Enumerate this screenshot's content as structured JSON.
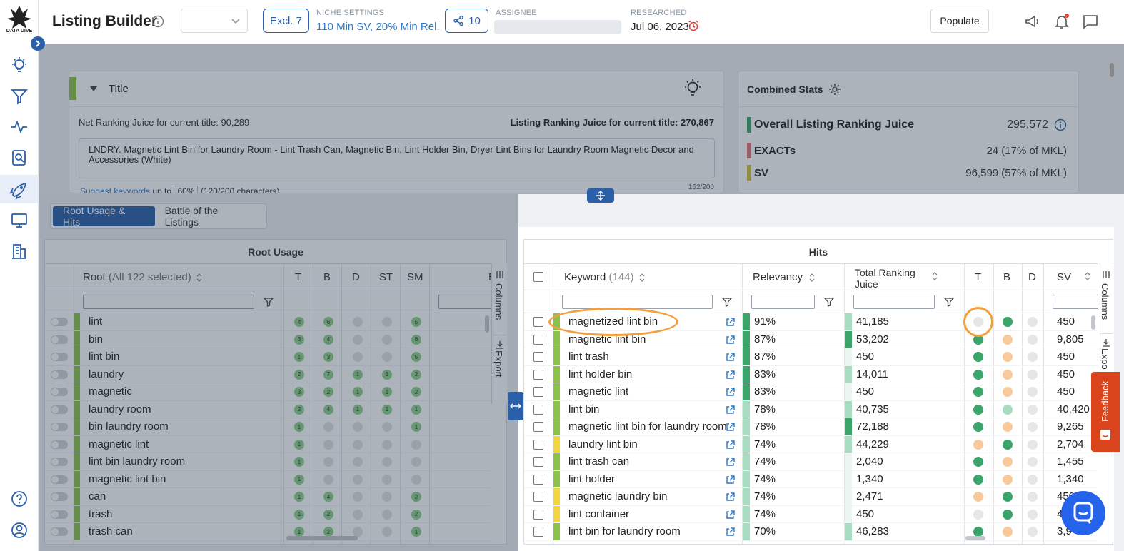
{
  "app": {
    "logo_text": "DATA DIVE",
    "page_title": "Listing Builder"
  },
  "header": {
    "excl_label": "Excl. 7",
    "niche_label": "NICHE SETTINGS",
    "niche_value": "110 Min SV, 20% Min Rel.",
    "share_count": "10",
    "assignee_label": "ASSIGNEE",
    "researched_label": "RESEARCHED",
    "researched_value": "Jul 06, 2023",
    "populate_label": "Populate"
  },
  "title_card": {
    "heading": "Title",
    "net_label": "Net Ranking Juice for current title:",
    "net_value": "90,289",
    "listing_label": "Listing Ranking Juice for current title:",
    "listing_value": "270,867",
    "text": "LNDRY. Magnetic Lint Bin for Laundry Room - Lint Trash Can, Magnetic Bin, Lint Holder Bin, Dryer Lint Bins for Laundry Room Magnetic Decor and Accessories (White)",
    "suggest_label": "Suggest keywords",
    "upto_label": "up to",
    "upto_value": "60%",
    "chars_label": "(120/200 characters)",
    "counter": "162/200"
  },
  "stats": {
    "title": "Combined Stats",
    "overall_label": "Overall Listing Ranking Juice",
    "overall_value": "295,572",
    "rows": [
      {
        "label": "EXACTs",
        "value": "24 (17% of MKL)",
        "color": "#e57373"
      },
      {
        "label": "SV",
        "value": "96,599 (57% of MKL)",
        "color": "#d4c43a"
      }
    ]
  },
  "tabs": [
    "Root Usage & Hits",
    "Battle of the Listings"
  ],
  "root_usage": {
    "title": "Root Usage",
    "root_header": "Root",
    "root_count": "(All 122 selected)",
    "cols": [
      "T",
      "B",
      "D",
      "ST",
      "SM",
      "B"
    ],
    "side_labels": [
      "Columns",
      "Export"
    ],
    "rows": [
      {
        "name": "lint",
        "t": "4",
        "b": "6",
        "d": "",
        "st": "",
        "sm": "5"
      },
      {
        "name": "bin",
        "t": "3",
        "b": "4",
        "d": "",
        "st": "",
        "sm": "8"
      },
      {
        "name": "lint bin",
        "t": "1",
        "b": "3",
        "d": "",
        "st": "",
        "sm": "5"
      },
      {
        "name": "laundry",
        "t": "2",
        "b": "7",
        "d": "1",
        "st": "1",
        "sm": "2"
      },
      {
        "name": "magnetic",
        "t": "3",
        "b": "2",
        "d": "1",
        "st": "1",
        "sm": "2"
      },
      {
        "name": "laundry room",
        "t": "2",
        "b": "4",
        "d": "1",
        "st": "1",
        "sm": "1"
      },
      {
        "name": "bin laundry room",
        "t": "1",
        "b": "",
        "d": "",
        "st": "",
        "sm": "1"
      },
      {
        "name": "magnetic lint",
        "t": "1",
        "b": "",
        "d": "",
        "st": "",
        "sm": ""
      },
      {
        "name": "lint bin laundry room",
        "t": "1",
        "b": "",
        "d": "",
        "st": "",
        "sm": ""
      },
      {
        "name": "magnetic lint bin",
        "t": "1",
        "b": "",
        "d": "",
        "st": "",
        "sm": ""
      },
      {
        "name": "can",
        "t": "1",
        "b": "4",
        "d": "",
        "st": "",
        "sm": "2"
      },
      {
        "name": "trash",
        "t": "1",
        "b": "2",
        "d": "",
        "st": "",
        "sm": "2"
      },
      {
        "name": "trash can",
        "t": "1",
        "b": "2",
        "d": "",
        "st": "",
        "sm": "1"
      }
    ]
  },
  "hits": {
    "title": "Hits",
    "keyword_header": "Keyword",
    "keyword_count": "(144)",
    "relevancy_header": "Relevancy",
    "trj_header": "Total Ranking Juice",
    "cols": [
      "T",
      "B",
      "D",
      "SV"
    ],
    "side_labels": [
      "Columns",
      "Expo"
    ],
    "rows": [
      {
        "kw": "magnetized lint bin",
        "rel": "91%",
        "rel_pct": 91,
        "trj": "41,185",
        "trj_pct": 0.57,
        "t": "#e6e6e6",
        "b": "#3aa46a",
        "d": "#e6e6e6",
        "sv": "450",
        "color": "#8bc34a"
      },
      {
        "kw": "magnetic lint bin",
        "rel": "87%",
        "rel_pct": 87,
        "trj": "53,202",
        "trj_pct": 0.74,
        "t": "#3aa46a",
        "b": "#f8c99a",
        "d": "#e6e6e6",
        "sv": "9,805",
        "color": "#8bc34a"
      },
      {
        "kw": "lint trash",
        "rel": "87%",
        "rel_pct": 87,
        "trj": "450",
        "trj_pct": 0.006,
        "t": "#3aa46a",
        "b": "#f8c99a",
        "d": "#e6e6e6",
        "sv": "450",
        "color": "#8bc34a"
      },
      {
        "kw": "lint holder bin",
        "rel": "83%",
        "rel_pct": 83,
        "trj": "14,011",
        "trj_pct": 0.19,
        "t": "#3aa46a",
        "b": "#f8c99a",
        "d": "#e6e6e6",
        "sv": "450",
        "color": "#8bc34a"
      },
      {
        "kw": "magnetic lint",
        "rel": "83%",
        "rel_pct": 83,
        "trj": "450",
        "trj_pct": 0.006,
        "t": "#3aa46a",
        "b": "#f8c99a",
        "d": "#e6e6e6",
        "sv": "450",
        "color": "#8bc34a"
      },
      {
        "kw": "lint bin",
        "rel": "78%",
        "rel_pct": 78,
        "trj": "40,735",
        "trj_pct": 0.56,
        "t": "#3aa46a",
        "b": "#a8dcc0",
        "d": "#e6e6e6",
        "sv": "40,420",
        "color": "#8bc34a"
      },
      {
        "kw": "magnetic lint bin for laundry room",
        "rel": "78%",
        "rel_pct": 78,
        "trj": "72,188",
        "trj_pct": 1.0,
        "t": "#3aa46a",
        "b": "#f8c99a",
        "d": "#e6e6e6",
        "sv": "9,265",
        "color": "#8bc34a"
      },
      {
        "kw": "laundry lint bin",
        "rel": "74%",
        "rel_pct": 74,
        "trj": "44,229",
        "trj_pct": 0.61,
        "t": "#f8c99a",
        "b": "#3aa46a",
        "d": "#e6e6e6",
        "sv": "2,704",
        "color": "#f2d43c"
      },
      {
        "kw": "lint trash can",
        "rel": "74%",
        "rel_pct": 74,
        "trj": "2,040",
        "trj_pct": 0.03,
        "t": "#3aa46a",
        "b": "#f8c99a",
        "d": "#e6e6e6",
        "sv": "1,455",
        "color": "#8bc34a"
      },
      {
        "kw": "lint holder",
        "rel": "74%",
        "rel_pct": 74,
        "trj": "1,340",
        "trj_pct": 0.02,
        "t": "#3aa46a",
        "b": "#f8c99a",
        "d": "#e6e6e6",
        "sv": "1,340",
        "color": "#8bc34a"
      },
      {
        "kw": "magnetic laundry bin",
        "rel": "74%",
        "rel_pct": 74,
        "trj": "2,471",
        "trj_pct": 0.03,
        "t": "#f8c99a",
        "b": "#3aa46a",
        "d": "#e6e6e6",
        "sv": "450",
        "color": "#f2d43c"
      },
      {
        "kw": "lint container",
        "rel": "74%",
        "rel_pct": 74,
        "trj": "450",
        "trj_pct": 0.006,
        "t": "#e6e6e6",
        "b": "#3aa46a",
        "d": "#e6e6e6",
        "sv": "450",
        "color": "#f2d43c"
      },
      {
        "kw": "lint bin for laundry room",
        "rel": "70%",
        "rel_pct": 70,
        "trj": "46,283",
        "trj_pct": 0.64,
        "t": "#3aa46a",
        "b": "#f8c99a",
        "d": "#e6e6e6",
        "sv": "3,9",
        "color": "#8bc34a"
      }
    ]
  },
  "feedback_label": "Feedback",
  "colors": {
    "primary": "#2b5fa8",
    "accent_green": "#3aa46a",
    "highlight": "#f59e3a"
  }
}
